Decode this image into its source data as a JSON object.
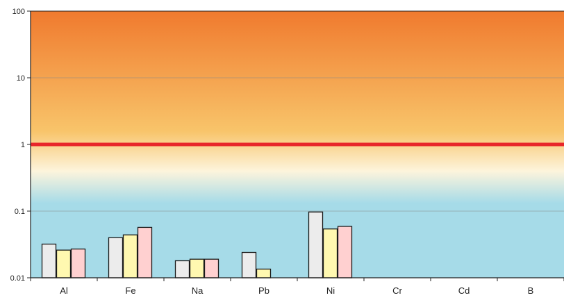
{
  "chart_data": {
    "type": "bar",
    "y_scale": "log",
    "ylim": [
      0.01,
      100
    ],
    "y_ticks": [
      {
        "value": 100,
        "label": "100"
      },
      {
        "value": 10,
        "label": "10"
      },
      {
        "value": 1,
        "label": "1"
      },
      {
        "value": 0.1,
        "label": "0.1"
      },
      {
        "value": 0.01,
        "label": "0.01"
      }
    ],
    "categories": [
      "Al",
      "Fe",
      "Na",
      "Pb",
      "Ni",
      "Cr",
      "Cd",
      "B"
    ],
    "series": [
      {
        "color": "#ececec",
        "values": [
          0.032,
          0.04,
          0.018,
          0.024,
          0.097,
          null,
          null,
          null
        ]
      },
      {
        "color": "#fff8b0",
        "values": [
          0.026,
          0.044,
          0.019,
          0.0135,
          0.054,
          null,
          null,
          null
        ]
      },
      {
        "color": "#ffd0d0",
        "values": [
          0.027,
          0.057,
          0.019,
          null,
          0.059,
          null,
          null,
          null
        ]
      }
    ],
    "reference_line": {
      "value": 1,
      "color": "#e8262a"
    },
    "background_colors": [
      "#f07a2e",
      "#f8c46a",
      "#fdf4dc",
      "#a6dbe8"
    ],
    "grid": true,
    "legend": "none"
  }
}
